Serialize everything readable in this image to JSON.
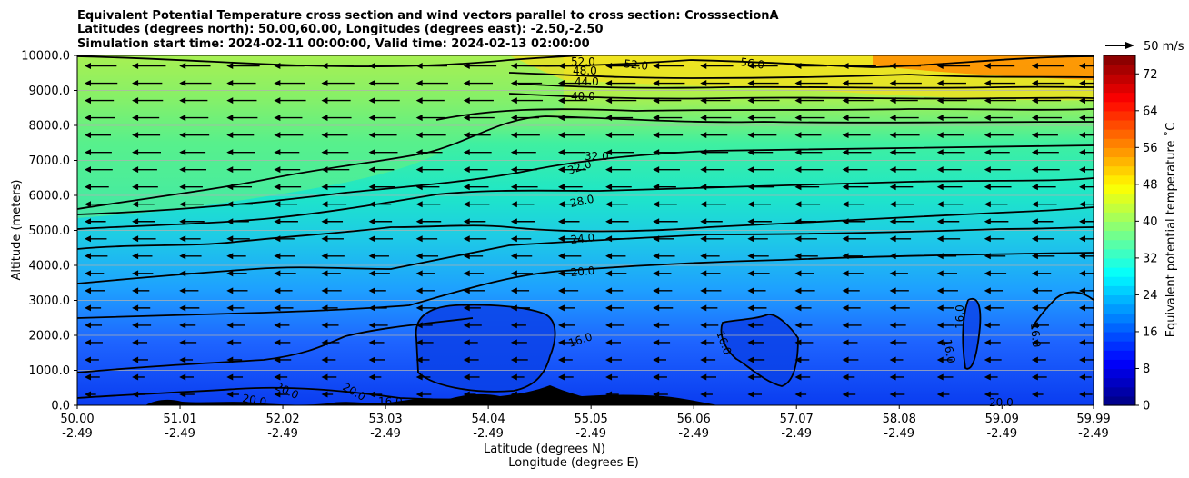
{
  "chart_data": {
    "type": "heatmap",
    "title_lines": [
      "Equivalent Potential Temperature cross section and wind vectors parallel to cross section: CrosssectionA",
      "Latitudes (degrees north): 50.00,60.00, Longitudes (degrees east): -2.50,-2.50",
      "Simulation start time: 2024-02-11 00:00:00, Valid time: 2024-02-13 02:00:00"
    ],
    "ylabel": "Altitude (meters)",
    "xlabel_lines": [
      "Latitude (degrees N)",
      "Longitude (degrees E)"
    ],
    "x_ticks": [
      {
        "lat": "50.00",
        "lon": "-2.49"
      },
      {
        "lat": "51.01",
        "lon": "-2.49"
      },
      {
        "lat": "52.02",
        "lon": "-2.49"
      },
      {
        "lat": "53.03",
        "lon": "-2.49"
      },
      {
        "lat": "54.04",
        "lon": "-2.49"
      },
      {
        "lat": "55.05",
        "lon": "-2.49"
      },
      {
        "lat": "56.06",
        "lon": "-2.49"
      },
      {
        "lat": "57.07",
        "lon": "-2.49"
      },
      {
        "lat": "58.08",
        "lon": "-2.49"
      },
      {
        "lat": "59.09",
        "lon": "-2.49"
      },
      {
        "lat": "59.99",
        "lon": "-2.49"
      }
    ],
    "xlim": [
      50.0,
      59.99
    ],
    "y_ticks": [
      "0.0",
      "1000.0",
      "2000.0",
      "3000.0",
      "4000.0",
      "5000.0",
      "6000.0",
      "7000.0",
      "8000.0",
      "9000.0",
      "10000.0"
    ],
    "ylim": [
      0,
      10000
    ],
    "grid": "horizontal",
    "colorbar": {
      "label": "Equivalent potential temperature ˚C",
      "ticks": [
        "0",
        "8",
        "16",
        "24",
        "32",
        "40",
        "48",
        "56",
        "64",
        "72"
      ],
      "range": [
        0,
        76
      ],
      "colormap": "jet"
    },
    "wind_key": {
      "label": "50 m/s"
    },
    "contour_labels": [
      {
        "text": "52.0"
      },
      {
        "text": "48.0"
      },
      {
        "text": "44.0"
      },
      {
        "text": "40.0"
      },
      {
        "text": "56.0"
      },
      {
        "text": "52.0"
      },
      {
        "text": "32.0"
      },
      {
        "text": "32.0"
      },
      {
        "text": "28.0"
      },
      {
        "text": "24.0"
      },
      {
        "text": "20.0"
      },
      {
        "text": "16.0"
      },
      {
        "text": "16.0"
      },
      {
        "text": "16.0"
      },
      {
        "text": "16.0"
      },
      {
        "text": "16.0"
      },
      {
        "text": "20.0"
      },
      {
        "text": "20.0"
      },
      {
        "text": "20.0"
      },
      {
        "text": "16.0"
      },
      {
        "text": "20.0"
      }
    ],
    "contour_levels": [
      16,
      20,
      24,
      28,
      32,
      36,
      40,
      44,
      48,
      52,
      56
    ],
    "wind_direction": "southward (arrows pointing left)"
  },
  "colors": {
    "terrain": "#000000",
    "contour": "#000000",
    "grid": "#b0b0b0"
  }
}
